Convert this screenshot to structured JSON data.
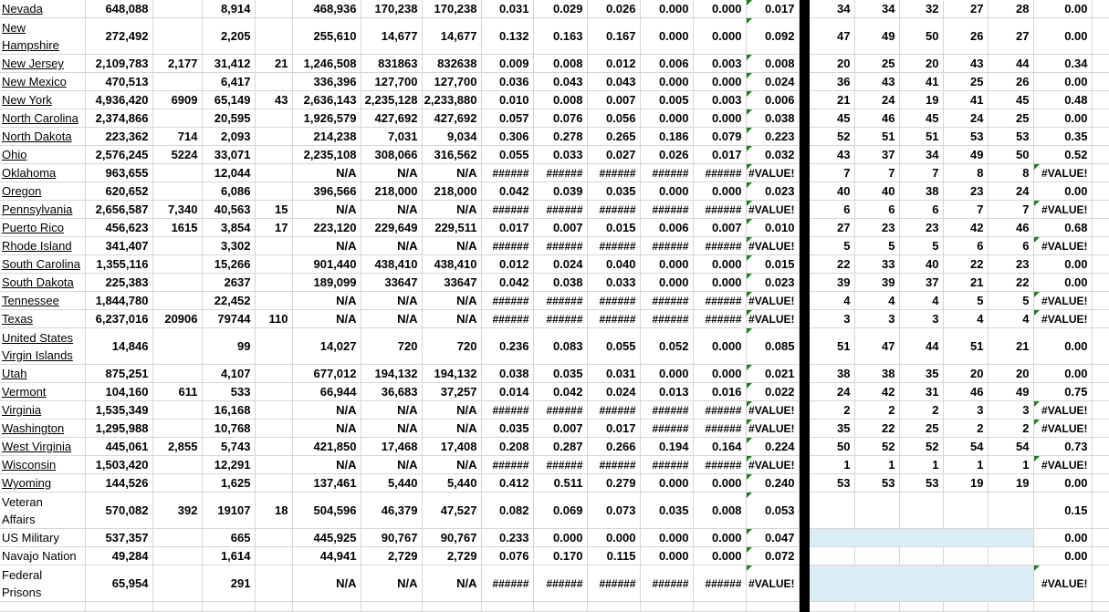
{
  "colors": {
    "gridline": "#d6d6d6",
    "band": "#dbecf4",
    "error_triangle_green": "#1f7d1f",
    "separator_bar": "#000000"
  },
  "table": {
    "rows": [
      {
        "name": "Nevada",
        "link": true,
        "band": false,
        "cells": [
          "648,088",
          "",
          "8,914",
          "",
          "468,936",
          "170,238",
          "170,238",
          "0.031",
          "0.029",
          "0.026",
          "0.000",
          "0.000",
          "0.017",
          "34",
          "34",
          "32",
          "27",
          "28",
          "0.00"
        ]
      },
      {
        "name": "New\nHampshire",
        "link": true,
        "band": false,
        "cells": [
          "272,492",
          "",
          "2,205",
          "",
          "255,610",
          "14,677",
          "14,677",
          "0.132",
          "0.163",
          "0.167",
          "0.000",
          "0.000",
          "0.092",
          "47",
          "49",
          "50",
          "26",
          "27",
          "0.00"
        ]
      },
      {
        "name": "New Jersey",
        "link": true,
        "band": false,
        "cells": [
          "2,109,783",
          "2,177",
          "31,412",
          "21",
          "1,246,508",
          "831863",
          "832638",
          "0.009",
          "0.008",
          "0.012",
          "0.006",
          "0.003",
          "0.008",
          "20",
          "25",
          "20",
          "43",
          "44",
          "0.34"
        ]
      },
      {
        "name": "New Mexico",
        "link": true,
        "band": false,
        "cells": [
          "470,513",
          "",
          "6,417",
          "",
          "336,396",
          "127,700",
          "127,700",
          "0.036",
          "0.043",
          "0.043",
          "0.000",
          "0.000",
          "0.024",
          "36",
          "43",
          "41",
          "25",
          "26",
          "0.00"
        ]
      },
      {
        "name": "New York",
        "link": true,
        "band": false,
        "cells": [
          "4,936,420",
          "6909",
          "65,149",
          "43",
          "2,636,143",
          "2,235,128",
          "2,233,880",
          "0.010",
          "0.008",
          "0.007",
          "0.005",
          "0.003",
          "0.006",
          "21",
          "24",
          "19",
          "41",
          "45",
          "0.48"
        ]
      },
      {
        "name": "North Carolina",
        "link": true,
        "band": false,
        "cells": [
          "2,374,866",
          "",
          "20,595",
          "",
          "1,926,579",
          "427,692",
          "427,692",
          "0.057",
          "0.076",
          "0.056",
          "0.000",
          "0.000",
          "0.038",
          "45",
          "46",
          "45",
          "24",
          "25",
          "0.00"
        ]
      },
      {
        "name": "North Dakota",
        "link": true,
        "band": false,
        "cells": [
          "223,362",
          "714",
          "2,093",
          "",
          "214,238",
          "7,031",
          "9,034",
          "0.306",
          "0.278",
          "0.265",
          "0.186",
          "0.079",
          "0.223",
          "52",
          "51",
          "51",
          "53",
          "53",
          "0.35"
        ]
      },
      {
        "name": "Ohio",
        "link": true,
        "band": false,
        "cells": [
          "2,576,245",
          "5224",
          "33,071",
          "",
          "2,235,108",
          "308,066",
          "316,562",
          "0.055",
          "0.033",
          "0.027",
          "0.026",
          "0.017",
          "0.032",
          "43",
          "37",
          "34",
          "49",
          "50",
          "0.52"
        ]
      },
      {
        "name": "Oklahoma",
        "link": true,
        "band": false,
        "cells": [
          "963,655",
          "",
          "12,044",
          "",
          "N/A",
          "N/A",
          "N/A",
          "######",
          "######",
          "######",
          "######",
          "######",
          "#VALUE!",
          "7",
          "7",
          "7",
          "8",
          "8",
          "#VALUE!"
        ]
      },
      {
        "name": "Oregon",
        "link": true,
        "band": false,
        "cells": [
          "620,652",
          "",
          "6,086",
          "",
          "396,566",
          "218,000",
          "218,000",
          "0.042",
          "0.039",
          "0.035",
          "0.000",
          "0.000",
          "0.023",
          "40",
          "40",
          "38",
          "23",
          "24",
          "0.00"
        ]
      },
      {
        "name": "Pennsylvania",
        "link": true,
        "band": false,
        "cells": [
          "2,656,587",
          "7,340",
          "40,563",
          "15",
          "N/A",
          "N/A",
          "N/A",
          "######",
          "######",
          "######",
          "######",
          "######",
          "#VALUE!",
          "6",
          "6",
          "6",
          "7",
          "7",
          "#VALUE!"
        ]
      },
      {
        "name": "Puerto Rico",
        "link": true,
        "band": false,
        "cells": [
          "456,623",
          "1615",
          "3,854",
          "17",
          "223,120",
          "229,649",
          "229,511",
          "0.017",
          "0.007",
          "0.015",
          "0.006",
          "0.007",
          "0.010",
          "27",
          "23",
          "23",
          "42",
          "46",
          "0.68"
        ]
      },
      {
        "name": "Rhode Island",
        "link": true,
        "band": false,
        "cells": [
          "341,407",
          "",
          "3,302",
          "",
          "N/A",
          "N/A",
          "N/A",
          "######",
          "######",
          "######",
          "######",
          "######",
          "#VALUE!",
          "5",
          "5",
          "5",
          "6",
          "6",
          "#VALUE!"
        ]
      },
      {
        "name": "South Carolina",
        "link": true,
        "band": false,
        "cells": [
          "1,355,116",
          "",
          "15,266",
          "",
          "901,440",
          "438,410",
          "438,410",
          "0.012",
          "0.024",
          "0.040",
          "0.000",
          "0.000",
          "0.015",
          "22",
          "33",
          "40",
          "22",
          "23",
          "0.00"
        ]
      },
      {
        "name": "South Dakota",
        "link": true,
        "band": false,
        "cells": [
          "225,383",
          "",
          "2637",
          "",
          "189,099",
          "33647",
          "33647",
          "0.042",
          "0.038",
          "0.033",
          "0.000",
          "0.000",
          "0.023",
          "39",
          "39",
          "37",
          "21",
          "22",
          "0.00"
        ]
      },
      {
        "name": "Tennessee",
        "link": true,
        "band": false,
        "cells": [
          "1,844,780",
          "",
          "22,452",
          "",
          "N/A",
          "N/A",
          "N/A",
          "######",
          "######",
          "######",
          "######",
          "######",
          "#VALUE!",
          "4",
          "4",
          "4",
          "5",
          "5",
          "#VALUE!"
        ]
      },
      {
        "name": "Texas",
        "link": true,
        "band": false,
        "cells": [
          "6,237,016",
          "20906",
          "79744",
          "110",
          "N/A",
          "N/A",
          "N/A",
          "######",
          "######",
          "######",
          "######",
          "######",
          "#VALUE!",
          "3",
          "3",
          "3",
          "4",
          "4",
          "#VALUE!"
        ]
      },
      {
        "name": "United States\nVirgin Islands",
        "link": true,
        "band": false,
        "cells": [
          "14,846",
          "",
          "99",
          "",
          "14,027",
          "720",
          "720",
          "0.236",
          "0.083",
          "0.055",
          "0.052",
          "0.000",
          "0.085",
          "51",
          "47",
          "44",
          "51",
          "21",
          "0.00"
        ]
      },
      {
        "name": "Utah",
        "link": true,
        "band": false,
        "cells": [
          "875,251",
          "",
          "4,107",
          "",
          "677,012",
          "194,132",
          "194,132",
          "0.038",
          "0.035",
          "0.031",
          "0.000",
          "0.000",
          "0.021",
          "38",
          "38",
          "35",
          "20",
          "20",
          "0.00"
        ]
      },
      {
        "name": "Vermont",
        "link": true,
        "band": false,
        "cells": [
          "104,160",
          "611",
          "533",
          "",
          "66,944",
          "36,683",
          "37,257",
          "0.014",
          "0.042",
          "0.024",
          "0.013",
          "0.016",
          "0.022",
          "24",
          "42",
          "31",
          "46",
          "49",
          "0.75"
        ]
      },
      {
        "name": "Virginia",
        "link": true,
        "band": false,
        "cells": [
          "1,535,349",
          "",
          "16,168",
          "",
          "N/A",
          "N/A",
          "N/A",
          "######",
          "######",
          "######",
          "######",
          "######",
          "#VALUE!",
          "2",
          "2",
          "2",
          "3",
          "3",
          "#VALUE!"
        ]
      },
      {
        "name": "Washington",
        "link": true,
        "band": false,
        "cells": [
          "1,295,988",
          "",
          "10,768",
          "",
          "N/A",
          "N/A",
          "N/A",
          "0.035",
          "0.007",
          "0.017",
          "######",
          "######",
          "#VALUE!",
          "35",
          "22",
          "25",
          "2",
          "2",
          "#VALUE!"
        ]
      },
      {
        "name": "West Virginia",
        "link": true,
        "band": false,
        "cells": [
          "445,061",
          "2,855",
          "5,743",
          "",
          "421,850",
          "17,468",
          "17,408",
          "0.208",
          "0.287",
          "0.266",
          "0.194",
          "0.164",
          "0.224",
          "50",
          "52",
          "52",
          "54",
          "54",
          "0.73"
        ]
      },
      {
        "name": "Wisconsin",
        "link": true,
        "band": false,
        "cells": [
          "1,503,420",
          "",
          "12,291",
          "",
          "N/A",
          "N/A",
          "N/A",
          "######",
          "######",
          "######",
          "######",
          "######",
          "#VALUE!",
          "1",
          "1",
          "1",
          "1",
          "1",
          "#VALUE!"
        ]
      },
      {
        "name": "Wyoming",
        "link": true,
        "band": false,
        "cells": [
          "144,526",
          "",
          "1,625",
          "",
          "137,461",
          "5,440",
          "5,440",
          "0.412",
          "0.511",
          "0.279",
          "0.000",
          "0.000",
          "0.240",
          "53",
          "53",
          "53",
          "19",
          "19",
          "0.00"
        ]
      },
      {
        "name": "Veteran\nAffairs",
        "link": false,
        "band": false,
        "cells": [
          "570,082",
          "392",
          "19107",
          "18",
          "504,596",
          "46,379",
          "47,527",
          "0.082",
          "0.069",
          "0.073",
          "0.035",
          "0.008",
          "0.053",
          "",
          "",
          "",
          "",
          "",
          "0.15"
        ]
      },
      {
        "name": "US Military",
        "link": false,
        "band": true,
        "cells": [
          "537,357",
          "",
          "665",
          "",
          "445,925",
          "90,767",
          "90,767",
          "0.233",
          "0.000",
          "0.000",
          "0.000",
          "0.000",
          "0.047",
          "",
          "",
          "",
          "",
          "",
          "0.00"
        ]
      },
      {
        "name": "Navajo Nation",
        "link": false,
        "band": false,
        "cells": [
          "49,284",
          "",
          "1,614",
          "",
          "44,941",
          "2,729",
          "2,729",
          "0.076",
          "0.170",
          "0.115",
          "0.000",
          "0.000",
          "0.072",
          "",
          "",
          "",
          "",
          "",
          "0.00"
        ]
      },
      {
        "name": "Federal\nPrisons",
        "link": false,
        "band": true,
        "cells": [
          "65,954",
          "",
          "291",
          "",
          "N/A",
          "N/A",
          "N/A",
          "######",
          "######",
          "######",
          "######",
          "######",
          "#VALUE!",
          "",
          "",
          "",
          "",
          "",
          "#VALUE!"
        ]
      }
    ]
  }
}
